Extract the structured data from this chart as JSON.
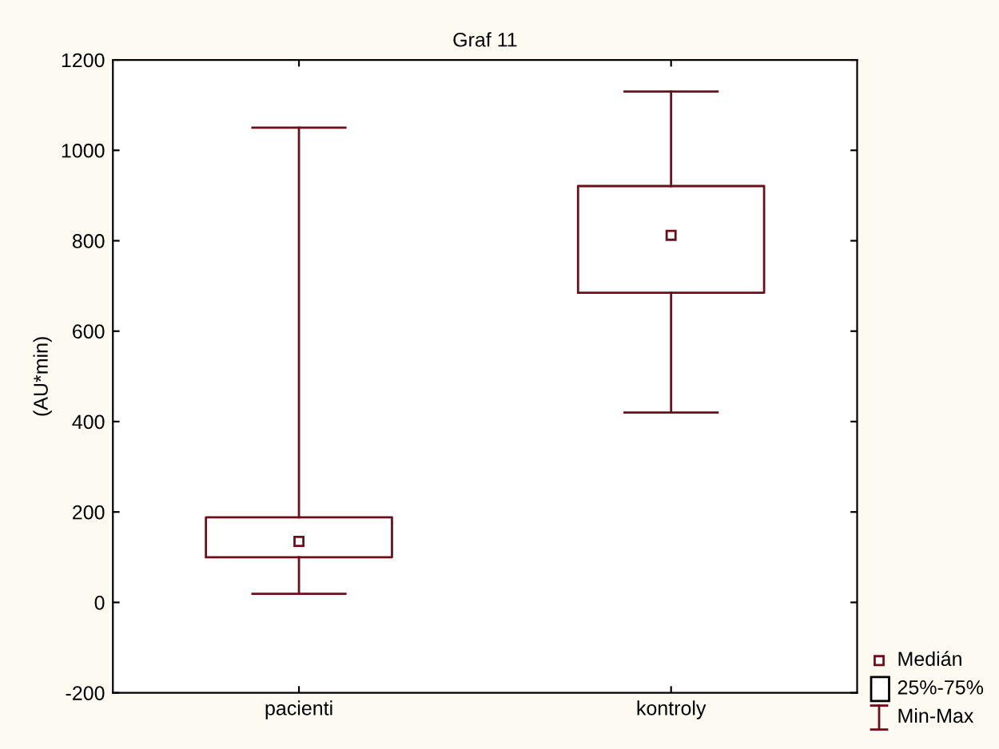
{
  "chart_data": {
    "type": "box",
    "title": "Graf 11",
    "ylabel": "(AU*min)",
    "categories": [
      "pacienti",
      "kontroly"
    ],
    "boxes": [
      {
        "low": 19,
        "q1": 100,
        "median": 135,
        "q3": 188,
        "high": 1050
      },
      {
        "low": 420,
        "q1": 685,
        "median": 812,
        "q3": 921,
        "high": 1130
      }
    ],
    "color": "#6b0f1a",
    "ylim": [
      -200,
      1200
    ],
    "yticks": [
      -200,
      0,
      200,
      400,
      600,
      800,
      1000,
      1200
    ],
    "grid": false,
    "marker": "square",
    "annotations": [
      "Medián",
      "25%-75%",
      "Min-Max"
    ]
  }
}
